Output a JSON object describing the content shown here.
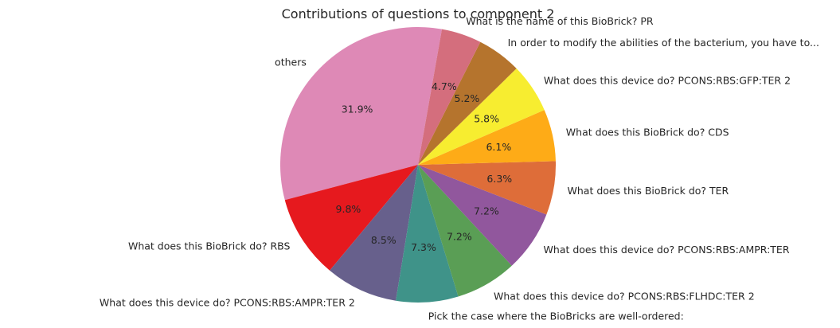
{
  "chart_data": {
    "type": "pie",
    "title": "Contributions of questions to component 2",
    "start_angle_deg": 80,
    "direction": "counterclockwise",
    "slices": [
      {
        "label": "others",
        "value": 31.9,
        "pct_label": "31.9%",
        "color": "#DE89B6"
      },
      {
        "label": "What does this BioBrick do? RBS",
        "value": 9.8,
        "pct_label": "9.8%",
        "color": "#E6191E"
      },
      {
        "label": "What does this device do? PCONS:RBS:AMPR:TER 2",
        "value": 8.5,
        "pct_label": "8.5%",
        "color": "#67608C"
      },
      {
        "label": "Pick the case where the BioBricks are well-ordered:",
        "value": 7.3,
        "pct_label": "7.3%",
        "color": "#3F9389"
      },
      {
        "label": "What does this device do? PCONS:RBS:FLHDC:TER 2",
        "value": 7.2,
        "pct_label": "7.2%",
        "color": "#5A9E55"
      },
      {
        "label": "What does this device do? PCONS:RBS:AMPR:TER",
        "value": 7.2,
        "pct_label": "7.2%",
        "color": "#91579D"
      },
      {
        "label": "What does this BioBrick do? TER",
        "value": 6.3,
        "pct_label": "6.3%",
        "color": "#DE6D39"
      },
      {
        "label": "What does this BioBrick do? CDS",
        "value": 6.1,
        "pct_label": "6.1%",
        "color": "#FEAB17"
      },
      {
        "label": "What does this device do? PCONS:RBS:GFP:TER 2",
        "value": 5.8,
        "pct_label": "5.8%",
        "color": "#F7ED30"
      },
      {
        "label": "In order to modify the abilities of the bacterium, you have to...",
        "value": 5.2,
        "pct_label": "5.2%",
        "color": "#B5742D"
      },
      {
        "label": "What is the name of this BioBrick? PR",
        "value": 4.7,
        "pct_label": "4.7%",
        "color": "#D46E7D"
      }
    ]
  }
}
